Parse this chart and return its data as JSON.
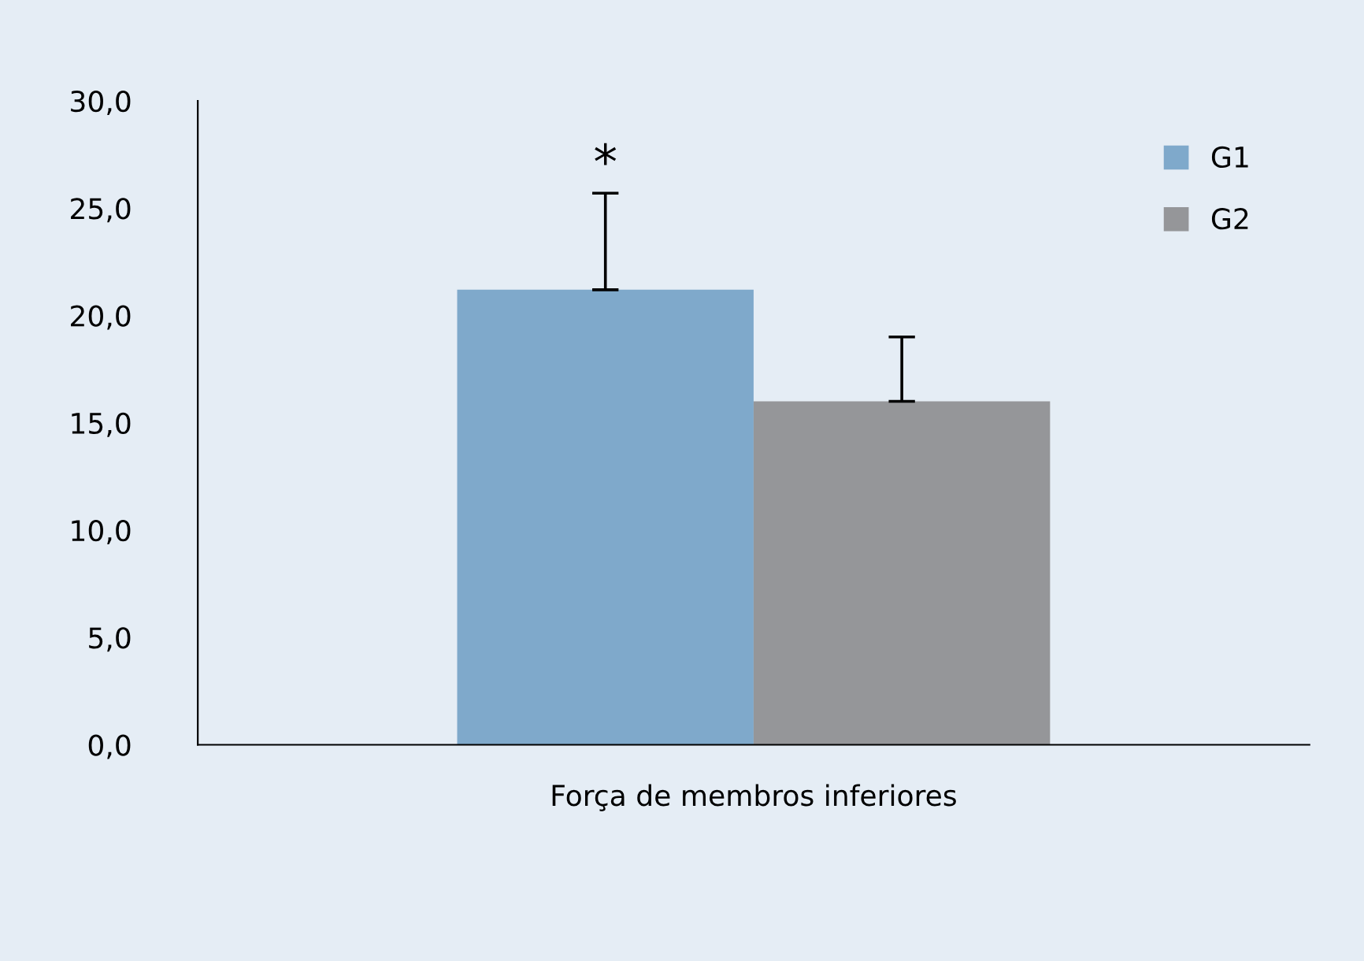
{
  "chart_data": {
    "type": "bar",
    "categories": [
      "Força de membros inferiores"
    ],
    "series": [
      {
        "name": "G1",
        "color": "#7fa9cb",
        "values": [
          21.2
        ],
        "errors": [
          [
            21.2,
            25.7
          ]
        ]
      },
      {
        "name": "G2",
        "color": "#959699",
        "values": [
          16.0
        ],
        "errors": [
          [
            16.0,
            19.0
          ]
        ]
      }
    ],
    "ylim": [
      0,
      30
    ],
    "yticks": [
      {
        "value": 0,
        "label": "0,0"
      },
      {
        "value": 5,
        "label": "5,0"
      },
      {
        "value": 10,
        "label": "10,0"
      },
      {
        "value": 15,
        "label": "15,0"
      },
      {
        "value": 20,
        "label": "20,0"
      },
      {
        "value": 25,
        "label": "25,0"
      },
      {
        "value": 30,
        "label": "30,0"
      }
    ],
    "annotations": [
      "*"
    ],
    "legend": "top right",
    "grid": false
  }
}
